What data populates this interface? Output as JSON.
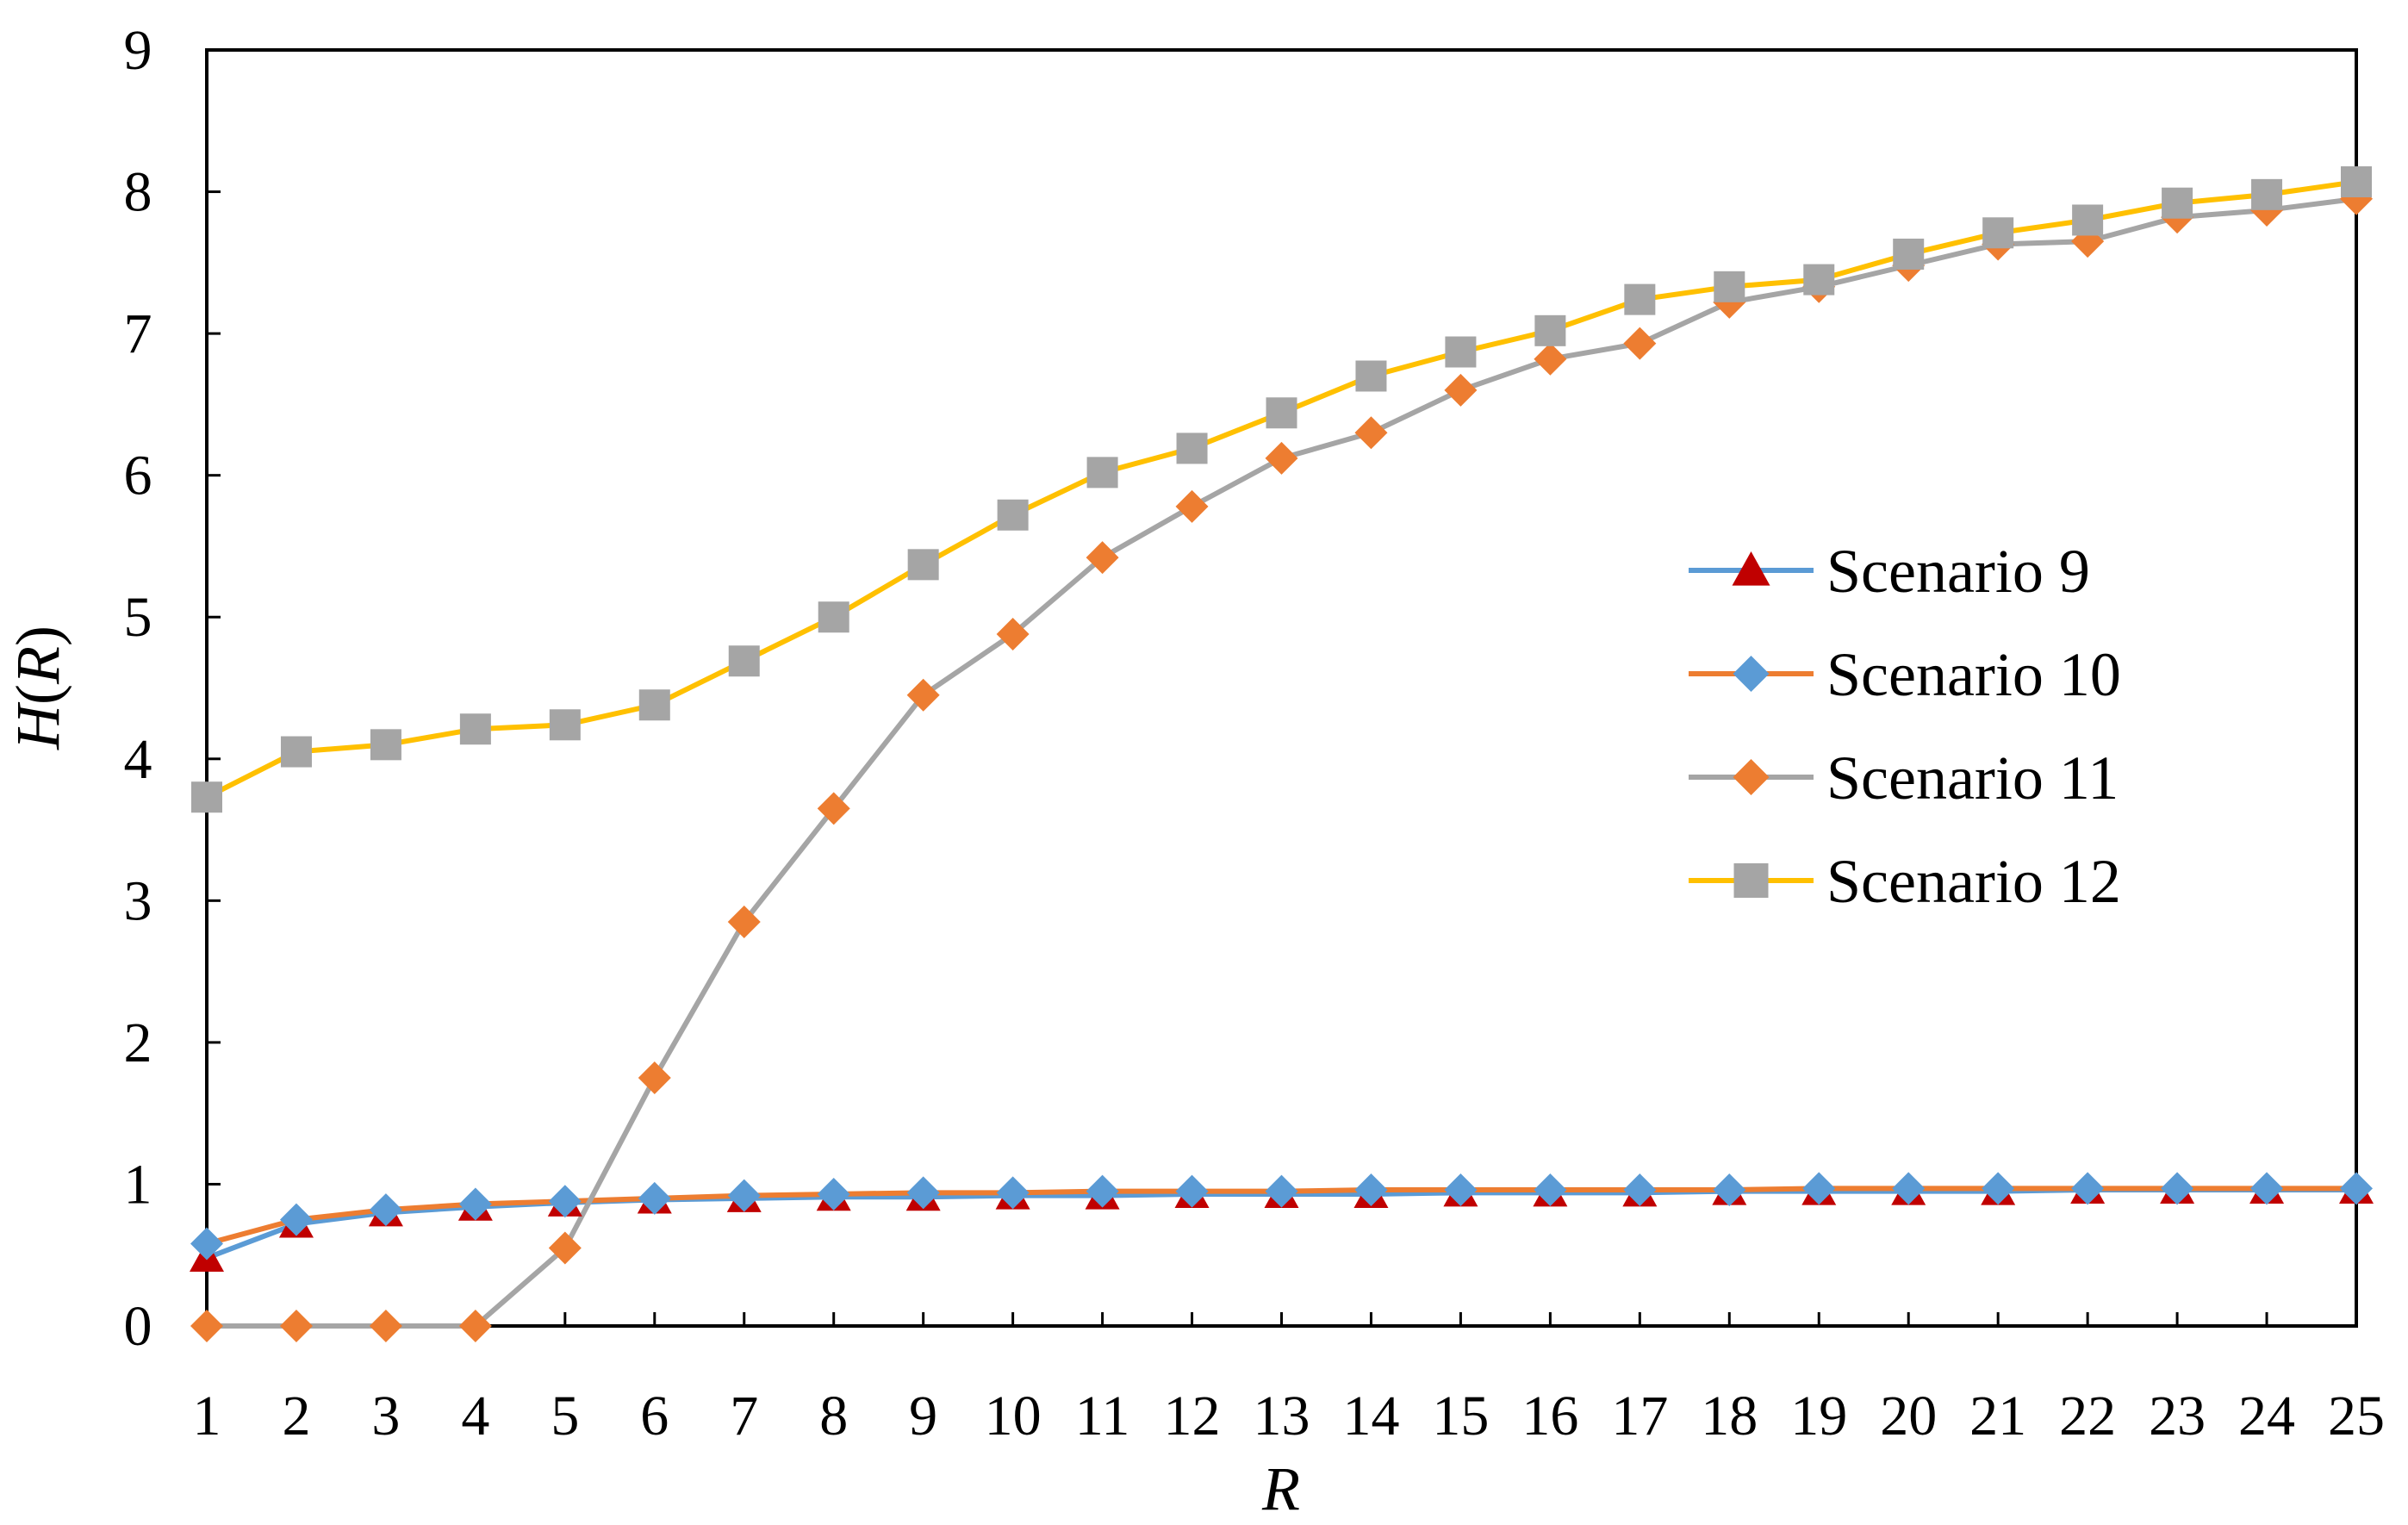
{
  "chart_data": {
    "type": "line",
    "title": "",
    "xlabel": "R",
    "ylabel_parts": {
      "fn": "H",
      "open": "(",
      "arg": "R",
      "close": ")"
    },
    "x": [
      1,
      2,
      3,
      4,
      5,
      6,
      7,
      8,
      9,
      10,
      11,
      12,
      13,
      14,
      15,
      16,
      17,
      18,
      19,
      20,
      21,
      22,
      23,
      24,
      25
    ],
    "xlim": [
      1,
      25
    ],
    "ylim": [
      0,
      9
    ],
    "yticks": [
      0,
      1,
      2,
      3,
      4,
      5,
      6,
      7,
      8,
      9
    ],
    "grid": false,
    "legend_position": "right",
    "series": [
      {
        "name": "Scenario 9",
        "line_color": "#5B9BD5",
        "marker": "triangle",
        "marker_color": "#C00000",
        "values": [
          0.48,
          0.72,
          0.8,
          0.84,
          0.87,
          0.89,
          0.9,
          0.91,
          0.91,
          0.92,
          0.92,
          0.93,
          0.93,
          0.93,
          0.94,
          0.94,
          0.94,
          0.95,
          0.95,
          0.95,
          0.95,
          0.96,
          0.96,
          0.96,
          0.96
        ]
      },
      {
        "name": "Scenario 10",
        "line_color": "#ED7D31",
        "marker": "diamond",
        "marker_color": "#5B9BD5",
        "values": [
          0.58,
          0.75,
          0.82,
          0.86,
          0.88,
          0.9,
          0.92,
          0.93,
          0.94,
          0.94,
          0.95,
          0.95,
          0.95,
          0.96,
          0.96,
          0.96,
          0.96,
          0.96,
          0.97,
          0.97,
          0.97,
          0.97,
          0.97,
          0.97,
          0.97
        ]
      },
      {
        "name": "Scenario 11",
        "line_color": "#A5A5A5",
        "marker": "diamond",
        "marker_color": "#ED7D31",
        "values": [
          0,
          0,
          0,
          0,
          0.55,
          1.75,
          2.85,
          3.65,
          4.45,
          4.88,
          5.42,
          5.78,
          6.12,
          6.3,
          6.6,
          6.82,
          6.93,
          7.22,
          7.33,
          7.48,
          7.63,
          7.65,
          7.82,
          7.87,
          7.95
        ]
      },
      {
        "name": "Scenario 12",
        "line_color": "#FFC000",
        "marker": "square",
        "marker_color": "#A5A5A5",
        "values": [
          3.73,
          4.05,
          4.1,
          4.21,
          4.24,
          4.38,
          4.69,
          5.0,
          5.37,
          5.72,
          6.02,
          6.19,
          6.44,
          6.7,
          6.87,
          7.02,
          7.24,
          7.33,
          7.38,
          7.56,
          7.71,
          7.8,
          7.92,
          7.98,
          8.07
        ]
      }
    ]
  }
}
